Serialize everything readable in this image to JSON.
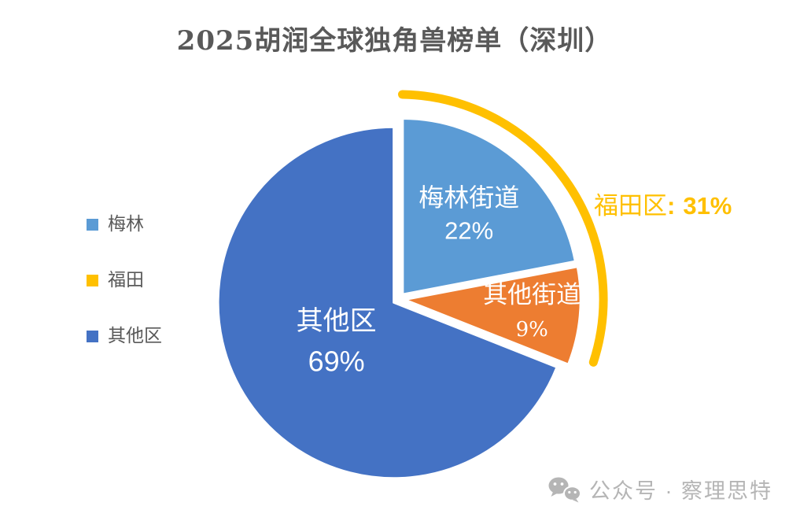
{
  "title": "2025胡润全球独角兽榜单（深圳）",
  "legend": {
    "position": "left",
    "items": [
      {
        "label": "梅林",
        "color": "#5B9BD5"
      },
      {
        "label": "福田",
        "color": "#FFC000"
      },
      {
        "label": "其他区",
        "color": "#4472C4"
      }
    ]
  },
  "annotation": {
    "label": "福田区",
    "separator": ":",
    "value": "31%",
    "color": "#FFC000"
  },
  "watermark": {
    "icon": "wechat-icon",
    "text": "公众号 · 察理思特",
    "color": "#b5b5b5"
  },
  "colors": {
    "title_gray": "#595959",
    "legend_text_gray": "#595959",
    "slice_light_blue": "#5B9BD5",
    "slice_orange": "#ED7D31",
    "slice_dark_blue": "#4472C4",
    "accent_gold": "#FFC000",
    "label_white": "#ffffff"
  },
  "chart_data": {
    "type": "pie",
    "title": "2025胡润全球独角兽榜单（深圳）",
    "unit": "percent",
    "direction": "clockwise",
    "start_angle_deg": 0,
    "slices": [
      {
        "label": "梅林街道",
        "value": 22,
        "display": "22%",
        "color": "#5B9BD5"
      },
      {
        "label": "其他街道",
        "value": 9,
        "display": "9%",
        "color": "#ED7D31"
      },
      {
        "label": "其他区",
        "value": 69,
        "display": "69%",
        "color": "#4472C4"
      }
    ],
    "callout": {
      "text": "福田区: 31%",
      "arc_color": "#FFC000",
      "arc_covers": "梅林街道 + 其他街道"
    },
    "legend_position": "left",
    "labels_inside": true
  }
}
